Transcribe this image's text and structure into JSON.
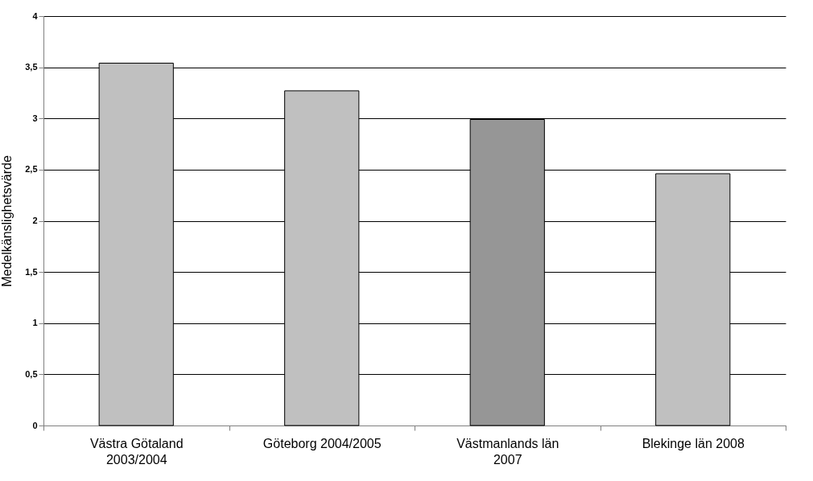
{
  "chart_data": {
    "type": "bar",
    "ylabel": "Medelkänslighetsvärde",
    "categories": [
      "Västra Götaland 2003/2004",
      "Göteborg 2004/2005",
      "Västmanlands län 2007",
      "Blekinge län 2008"
    ],
    "values": [
      3.54,
      3.27,
      2.99,
      2.46
    ],
    "colors": [
      "#c0c0c0",
      "#c0c0c0",
      "#969696",
      "#c0c0c0"
    ],
    "ylim": [
      0,
      4
    ],
    "yticks": [
      0,
      {
        "value": 0.5,
        "label": "0,5"
      },
      1,
      {
        "value": 1.5,
        "label": "1,5"
      },
      2,
      {
        "value": 2.5,
        "label": "2,5"
      },
      3,
      {
        "value": 3.5,
        "label": "3,5"
      },
      4
    ],
    "grid": "y",
    "legend": false
  }
}
